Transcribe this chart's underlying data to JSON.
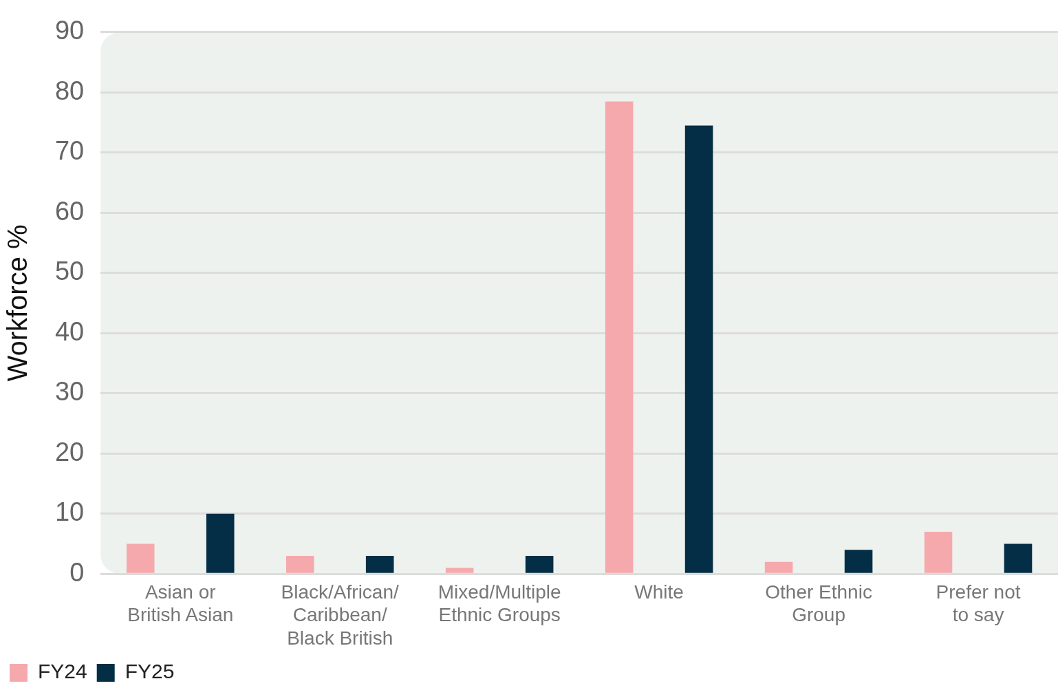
{
  "chart_data": {
    "type": "bar",
    "ylabel": "Workforce %",
    "categories": [
      "Asian or\nBritish Asian",
      "Black/African/\nCaribbean/\nBlack British",
      "Mixed/Multiple\nEthnic Groups",
      "White",
      "Other Ethnic\nGroup",
      "Prefer not\nto say"
    ],
    "series": [
      {
        "name": "FY24",
        "color": "#f6a9ad",
        "values": [
          5,
          3,
          1,
          78.5,
          2,
          7
        ]
      },
      {
        "name": "FY25",
        "color": "#032e45",
        "values": [
          10,
          3,
          3,
          74.5,
          4,
          5
        ]
      }
    ],
    "ylim": [
      0,
      90
    ],
    "yticks": [
      0,
      10,
      20,
      30,
      40,
      50,
      60,
      70,
      80,
      90
    ],
    "grid": "y",
    "legend": "bottom left"
  }
}
